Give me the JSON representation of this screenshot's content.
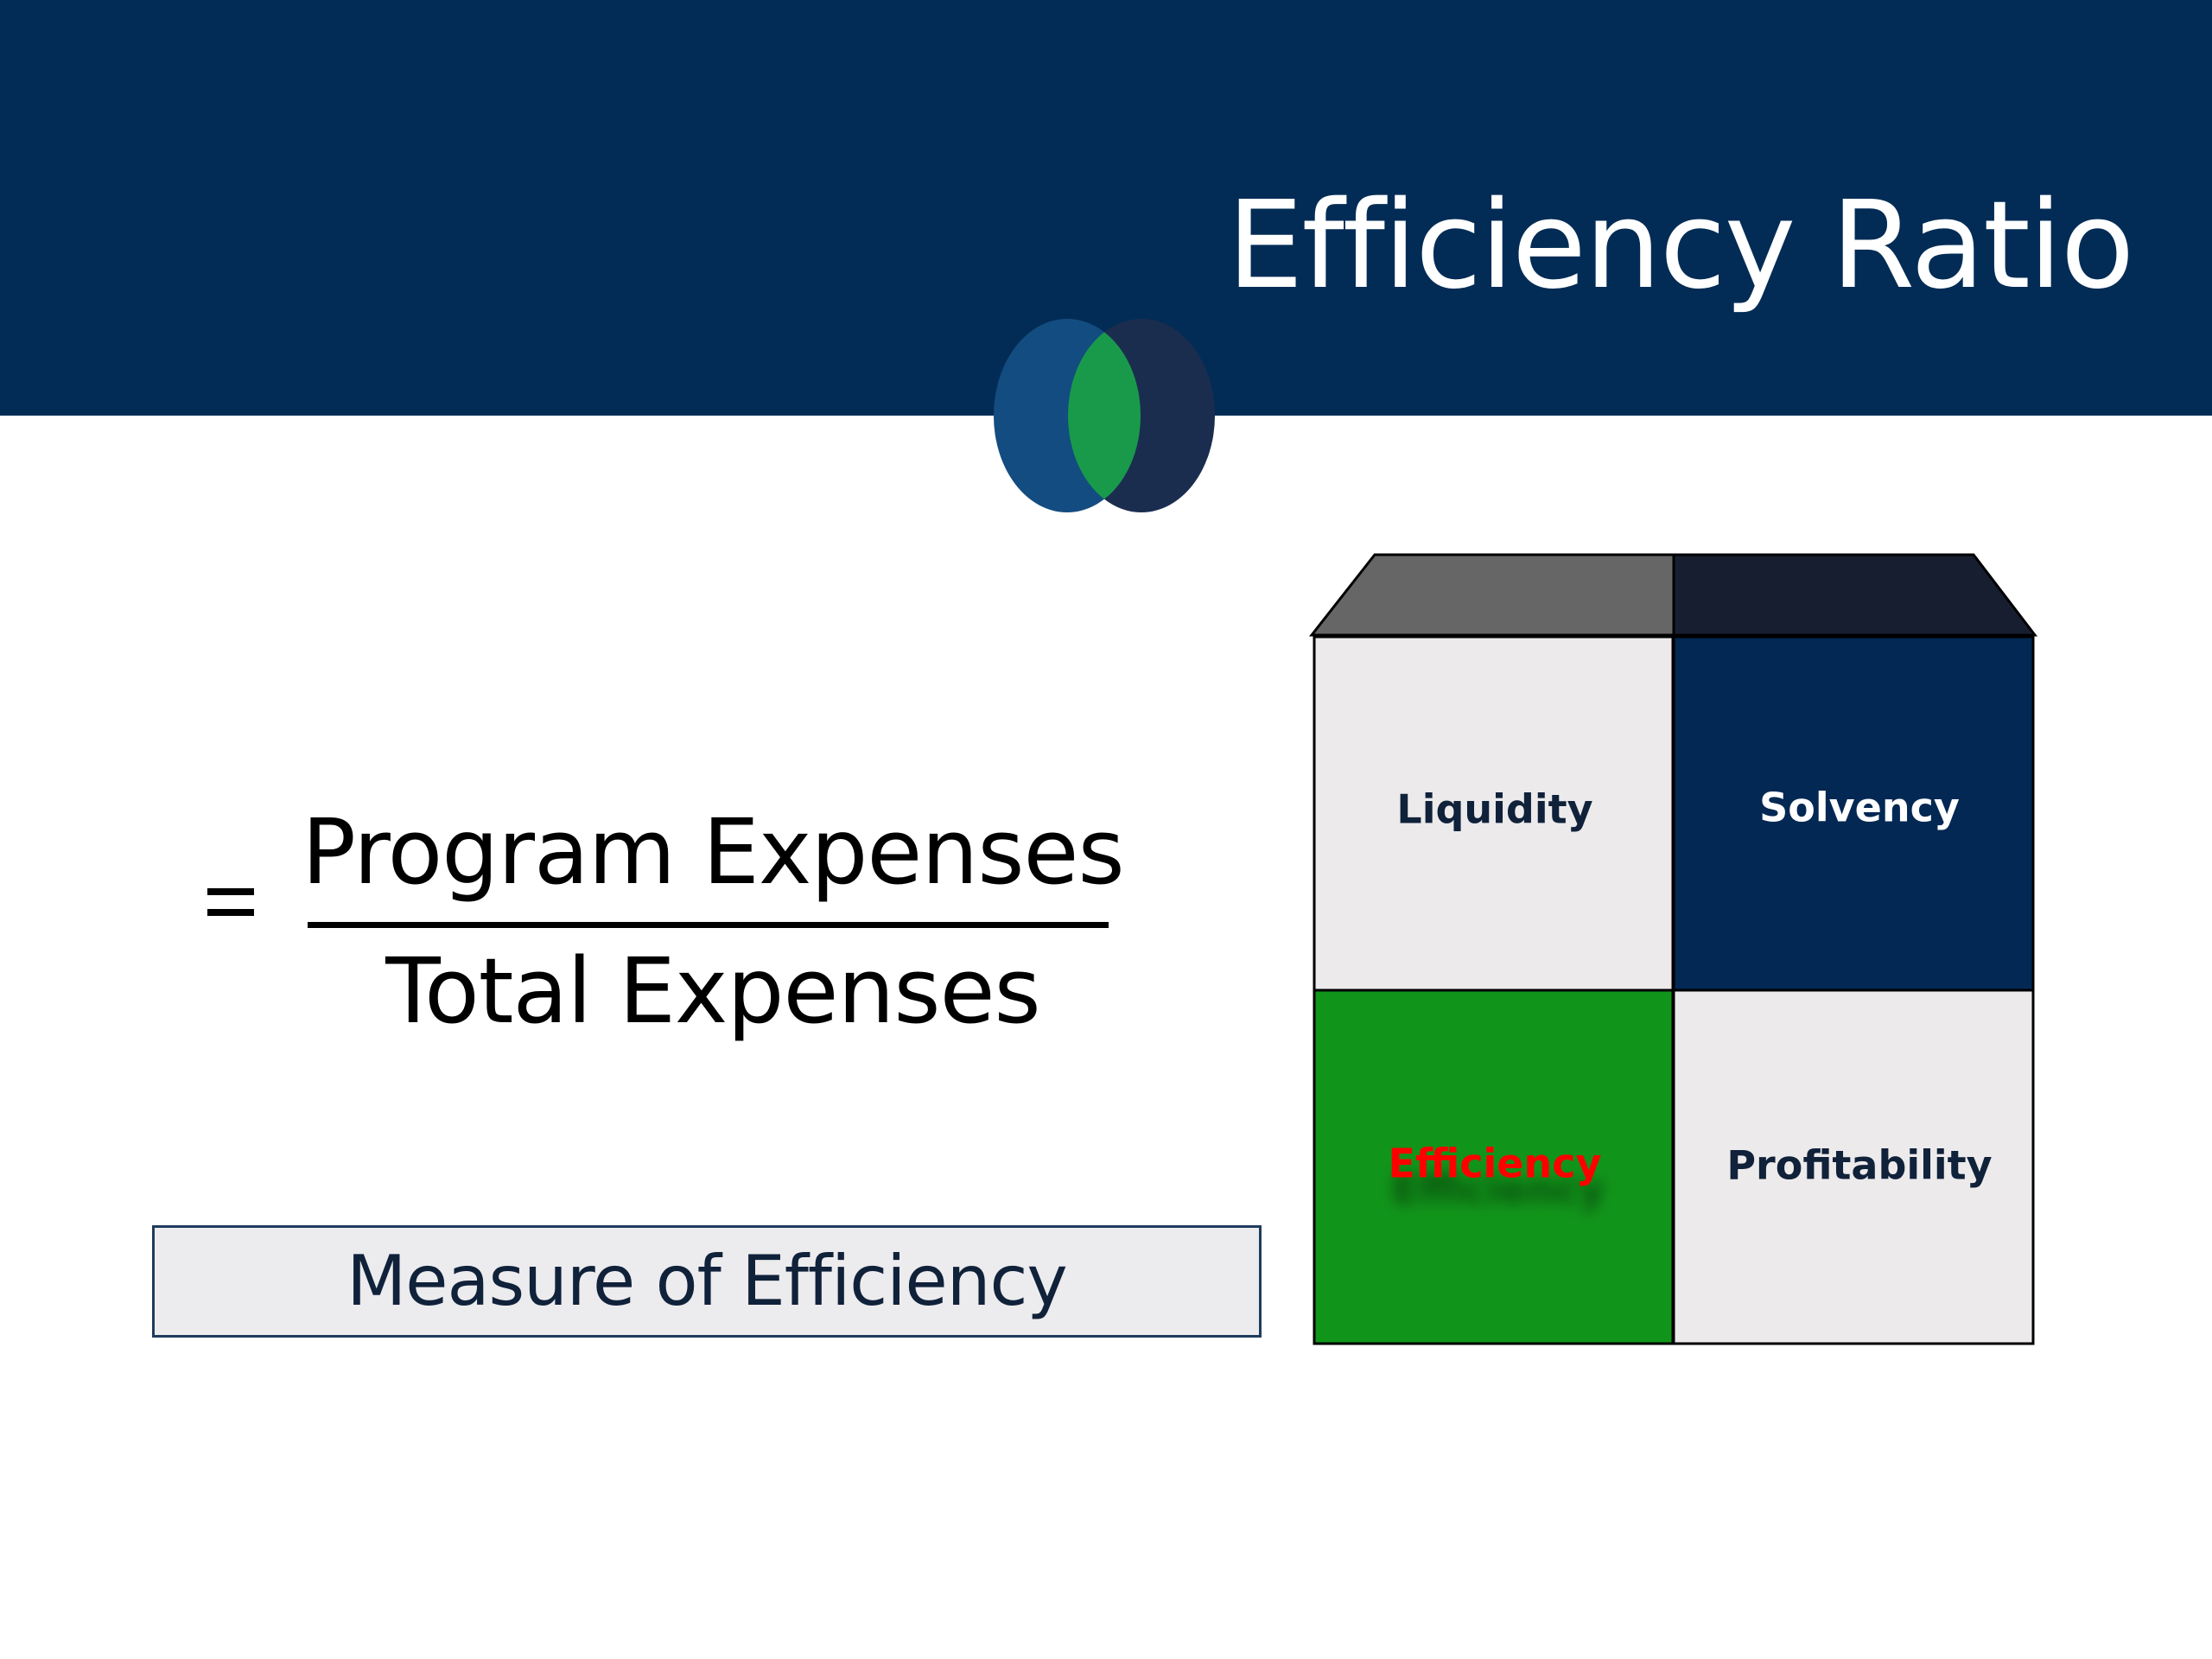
{
  "title": "Efficiency Ratio",
  "formula": {
    "equals": "=",
    "numerator": "Program Expenses",
    "denominator": "Total Expenses"
  },
  "measure_label": "Measure of Efficiency",
  "grid": {
    "top_left": "Liquidity",
    "top_right": "Solvency",
    "bottom_left": "Efficiency",
    "bottom_right": "Profitability"
  },
  "colors": {
    "header": "#022c55",
    "logo_left": "#134c80",
    "logo_right": "#1b2d4f",
    "logo_overlap": "#199a4b",
    "cell_light": "#eceaeb",
    "cell_dark": "#022853",
    "cell_green": "#11941a",
    "highlight_text": "#ff0000",
    "roof_left": "#666666",
    "roof_right": "#171e30"
  },
  "icons": {
    "logo": "overlapping-circles-logo-icon",
    "equals": "equals-sign-icon"
  }
}
